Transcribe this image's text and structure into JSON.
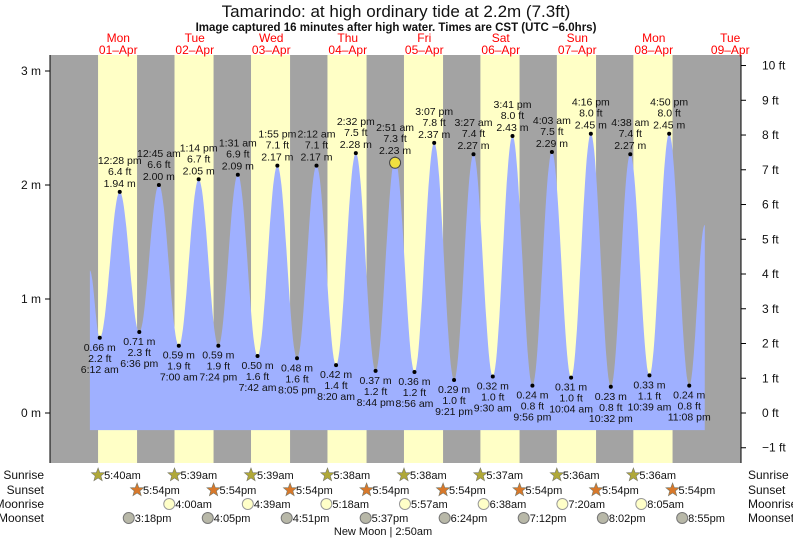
{
  "title": "Tamarindo: at high  ordinary tide at 2.2m (7.3ft)",
  "subtitle": "Image captured 16 minutes after high water. Times are CST (UTC −6.0hrs)",
  "colors": {
    "night": "#a3a3a3",
    "day": "#ffffc6",
    "water": "#9fb0ff",
    "day_label": "#ff0000",
    "marker": "#f0e040"
  },
  "chart_data": {
    "type": "area",
    "title": "Tamarindo: at high  ordinary tide at 2.2m (7.3ft)",
    "x_unit": "hours since Mon 01-Apr 00:00",
    "x_range": [
      0,
      207
    ],
    "left_axis": {
      "unit": "m",
      "ticks": [
        "0 m",
        "1 m",
        "2 m",
        "3 m"
      ],
      "values": [
        0,
        1,
        2,
        3
      ]
    },
    "right_axis": {
      "unit": "ft",
      "ticks": [
        "−1 ft",
        "0 ft",
        "1 ft",
        "2 ft",
        "3 ft",
        "4 ft",
        "5 ft",
        "6 ft",
        "7 ft",
        "8 ft",
        "9 ft",
        "10 ft"
      ],
      "values": [
        -1,
        0,
        1,
        2,
        3,
        4,
        5,
        6,
        7,
        8,
        9,
        10
      ]
    },
    "y_range_m": [
      -0.45,
      3.1
    ],
    "curve_start": {
      "hour": 3.1,
      "m": 1.25
    },
    "curve_end": {
      "hour": 196,
      "m": 1.65
    },
    "current": {
      "day": 4,
      "time": "2:51 am",
      "m": 2.23
    },
    "days": [
      {
        "day": "Mon",
        "date": "01–Apr"
      },
      {
        "day": "Tue",
        "date": "02–Apr"
      },
      {
        "day": "Wed",
        "date": "03–Apr"
      },
      {
        "day": "Thu",
        "date": "04–Apr"
      },
      {
        "day": "Fri",
        "date": "05–Apr"
      },
      {
        "day": "Sat",
        "date": "06–Apr"
      },
      {
        "day": "Sun",
        "date": "07–Apr"
      },
      {
        "day": "Mon",
        "date": "08–Apr"
      },
      {
        "day": "Tue",
        "date": "09–Apr"
      }
    ],
    "extremes": [
      {
        "day": 0,
        "type": "low",
        "time": "6:12 am",
        "ft": "2.2 ft",
        "m": 0.66,
        "m_label": "0.66 m"
      },
      {
        "day": 0,
        "type": "high",
        "time": "12:28 pm",
        "ft": "6.4 ft",
        "m": 1.94,
        "m_label": "1.94 m"
      },
      {
        "day": 0,
        "type": "low",
        "time": "6:36 pm",
        "ft": "2.3 ft",
        "m": 0.71,
        "m_label": "0.71 m"
      },
      {
        "day": 1,
        "type": "high",
        "time": "12:45 am",
        "ft": "6.6 ft",
        "m": 2.0,
        "m_label": "2.00 m"
      },
      {
        "day": 1,
        "type": "low",
        "time": "7:00 am",
        "ft": "1.9 ft",
        "m": 0.59,
        "m_label": "0.59 m"
      },
      {
        "day": 1,
        "type": "high",
        "time": "1:14 pm",
        "ft": "6.7 ft",
        "m": 2.05,
        "m_label": "2.05 m"
      },
      {
        "day": 1,
        "type": "low",
        "time": "7:24 pm",
        "ft": "1.9 ft",
        "m": 0.59,
        "m_label": "0.59 m"
      },
      {
        "day": 2,
        "type": "high",
        "time": "1:31 am",
        "ft": "6.9 ft",
        "m": 2.09,
        "m_label": "2.09 m"
      },
      {
        "day": 2,
        "type": "low",
        "time": "7:42 am",
        "ft": "1.6 ft",
        "m": 0.5,
        "m_label": "0.50 m"
      },
      {
        "day": 2,
        "type": "high",
        "time": "1:55 pm",
        "ft": "7.1 ft",
        "m": 2.17,
        "m_label": "2.17 m"
      },
      {
        "day": 2,
        "type": "low",
        "time": "8:05 pm",
        "ft": "1.6 ft",
        "m": 0.48,
        "m_label": "0.48 m"
      },
      {
        "day": 3,
        "type": "high",
        "time": "2:12 am",
        "ft": "7.1 ft",
        "m": 2.17,
        "m_label": "2.17 m"
      },
      {
        "day": 3,
        "type": "low",
        "time": "8:20 am",
        "ft": "1.4 ft",
        "m": 0.42,
        "m_label": "0.42 m"
      },
      {
        "day": 3,
        "type": "high",
        "time": "2:32 pm",
        "ft": "7.5 ft",
        "m": 2.28,
        "m_label": "2.28 m"
      },
      {
        "day": 3,
        "type": "low",
        "time": "8:44 pm",
        "ft": "1.2 ft",
        "m": 0.37,
        "m_label": "0.37 m"
      },
      {
        "day": 4,
        "type": "high",
        "time": "2:51 am",
        "ft": "7.3 ft",
        "m": 2.23,
        "m_label": "2.23 m"
      },
      {
        "day": 4,
        "type": "low",
        "time": "8:56 am",
        "ft": "1.2 ft",
        "m": 0.36,
        "m_label": "0.36 m"
      },
      {
        "day": 4,
        "type": "high",
        "time": "3:07 pm",
        "ft": "7.8 ft",
        "m": 2.37,
        "m_label": "2.37 m"
      },
      {
        "day": 4,
        "type": "low",
        "time": "9:21 pm",
        "ft": "1.0 ft",
        "m": 0.29,
        "m_label": "0.29 m"
      },
      {
        "day": 5,
        "type": "high",
        "time": "3:27 am",
        "ft": "7.4 ft",
        "m": 2.27,
        "m_label": "2.27 m"
      },
      {
        "day": 5,
        "type": "low",
        "time": "9:30 am",
        "ft": "1.0 ft",
        "m": 0.32,
        "m_label": "0.32 m"
      },
      {
        "day": 5,
        "type": "high",
        "time": "3:41 pm",
        "ft": "8.0 ft",
        "m": 2.43,
        "m_label": "2.43 m"
      },
      {
        "day": 5,
        "type": "low",
        "time": "9:56 pm",
        "ft": "0.8 ft",
        "m": 0.24,
        "m_label": "0.24 m"
      },
      {
        "day": 6,
        "type": "high",
        "time": "4:03 am",
        "ft": "7.5 ft",
        "m": 2.29,
        "m_label": "2.29 m"
      },
      {
        "day": 6,
        "type": "low",
        "time": "10:04 am",
        "ft": "1.0 ft",
        "m": 0.31,
        "m_label": "0.31 m"
      },
      {
        "day": 6,
        "type": "high",
        "time": "4:16 pm",
        "ft": "8.0 ft",
        "m": 2.45,
        "m_label": "2.45 m"
      },
      {
        "day": 6,
        "type": "low",
        "time": "10:32 pm",
        "ft": "0.8 ft",
        "m": 0.23,
        "m_label": "0.23 m"
      },
      {
        "day": 7,
        "type": "high",
        "time": "4:38 am",
        "ft": "7.4 ft",
        "m": 2.27,
        "m_label": "2.27 m"
      },
      {
        "day": 7,
        "type": "low",
        "time": "10:39 am",
        "ft": "1.1 ft",
        "m": 0.33,
        "m_label": "0.33 m"
      },
      {
        "day": 7,
        "type": "high",
        "time": "4:50 pm",
        "ft": "8.0 ft",
        "m": 2.45,
        "m_label": "2.45 m"
      },
      {
        "day": 7,
        "type": "low",
        "time": "11:08 pm",
        "ft": "0.8 ft",
        "m": 0.24,
        "m_label": "0.24 m"
      }
    ]
  },
  "astro": {
    "labels": {
      "sunrise": "Sunrise",
      "sunset": "Sunset",
      "moonrise": "Moonrise",
      "moonset": "Moonset"
    },
    "sunrise": [
      {
        "day": 0,
        "time": "5:40am"
      },
      {
        "day": 1,
        "time": "5:39am"
      },
      {
        "day": 2,
        "time": "5:39am"
      },
      {
        "day": 3,
        "time": "5:38am"
      },
      {
        "day": 4,
        "time": "5:38am"
      },
      {
        "day": 5,
        "time": "5:37am"
      },
      {
        "day": 6,
        "time": "5:36am"
      },
      {
        "day": 7,
        "time": "5:36am"
      }
    ],
    "sunset": [
      {
        "day": 0,
        "time": "5:54pm"
      },
      {
        "day": 1,
        "time": "5:54pm"
      },
      {
        "day": 2,
        "time": "5:54pm"
      },
      {
        "day": 3,
        "time": "5:54pm"
      },
      {
        "day": 4,
        "time": "5:54pm"
      },
      {
        "day": 5,
        "time": "5:54pm"
      },
      {
        "day": 6,
        "time": "5:54pm"
      },
      {
        "day": 7,
        "time": "5:54pm"
      }
    ],
    "moonrise": [
      {
        "day": 1,
        "time": "4:00am"
      },
      {
        "day": 2,
        "time": "4:39am"
      },
      {
        "day": 3,
        "time": "5:18am"
      },
      {
        "day": 4,
        "time": "5:57am"
      },
      {
        "day": 5,
        "time": "6:38am"
      },
      {
        "day": 6,
        "time": "7:20am"
      },
      {
        "day": 7,
        "time": "8:05am"
      }
    ],
    "moonset": [
      {
        "day": 0,
        "time": "3:18pm"
      },
      {
        "day": 1,
        "time": "4:05pm"
      },
      {
        "day": 2,
        "time": "4:51pm"
      },
      {
        "day": 3,
        "time": "5:37pm"
      },
      {
        "day": 4,
        "time": "6:24pm"
      },
      {
        "day": 5,
        "time": "7:12pm"
      },
      {
        "day": 6,
        "time": "8:02pm"
      },
      {
        "day": 7,
        "time": "8:55pm"
      }
    ],
    "moon_phase": "New Moon | 2:50am"
  }
}
